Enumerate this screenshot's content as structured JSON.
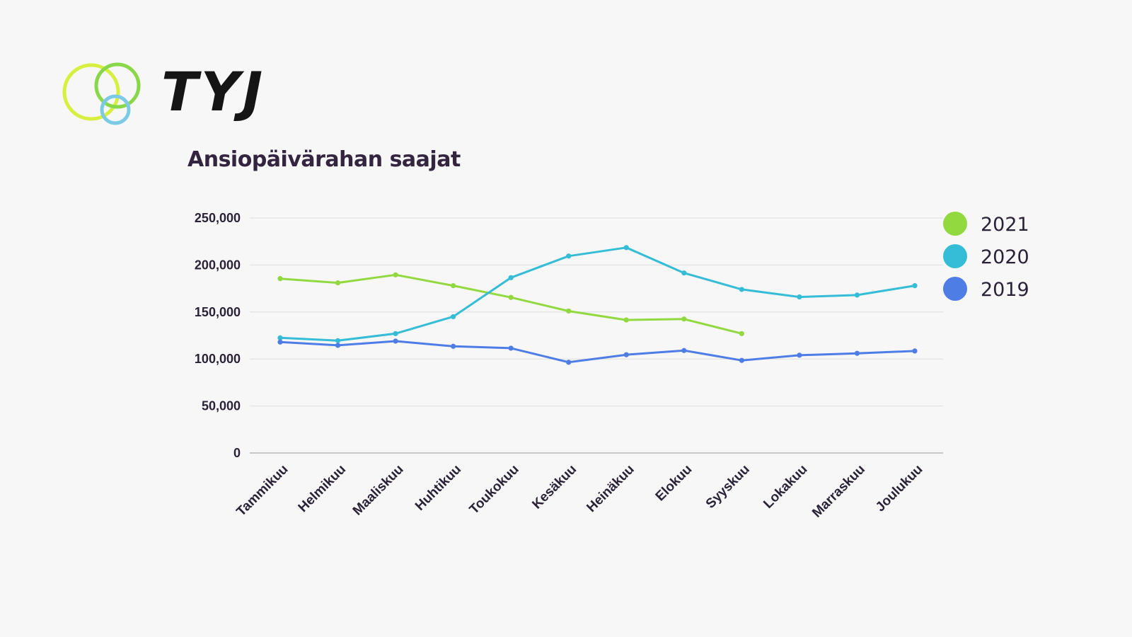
{
  "brand": {
    "name": "TYJ",
    "ring_colors": [
      "#d7ef3f",
      "#88d84a",
      "#7ccbe6"
    ]
  },
  "chart_data": {
    "type": "line",
    "title": "Ansiopäivärahan saajat",
    "xlabel": "",
    "ylabel": "",
    "categories": [
      "Tammikuu",
      "Helmikuu",
      "Maaliskuu",
      "Huhtikuu",
      "Toukokuu",
      "Kesäkuu",
      "Heinäkuu",
      "Elokuu",
      "Syyskuu",
      "Lokakuu",
      "Marraskuu",
      "Joulukuu"
    ],
    "ylim": [
      0,
      250000
    ],
    "yticks": [
      0,
      50000,
      100000,
      150000,
      200000,
      250000
    ],
    "ytick_labels": [
      "0",
      "50,000",
      "100,000",
      "150,000",
      "200,000",
      "250,000"
    ],
    "grid": true,
    "legend_position": "right",
    "series": [
      {
        "name": "2021",
        "color": "#92d940",
        "values": [
          185500,
          181000,
          189500,
          178000,
          165500,
          151000,
          141500,
          142500,
          127000,
          null,
          null,
          null
        ]
      },
      {
        "name": "2020",
        "color": "#35bdd8",
        "values": [
          122500,
          119500,
          127000,
          145000,
          186500,
          209500,
          218500,
          191500,
          174000,
          166000,
          168000,
          178000
        ]
      },
      {
        "name": "2019",
        "color": "#4f7de6",
        "values": [
          118000,
          114500,
          119000,
          113500,
          111500,
          96500,
          104500,
          109000,
          98500,
          104000,
          106000,
          108500
        ]
      }
    ]
  }
}
